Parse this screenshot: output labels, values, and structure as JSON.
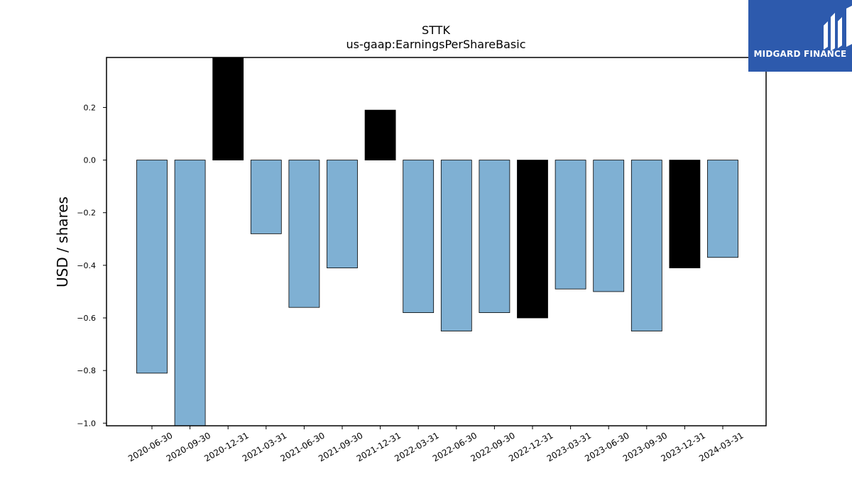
{
  "chart_data": {
    "type": "bar",
    "title": "STTK",
    "subtitle": "us-gaap:EarningsPerShareBasic",
    "ylabel": "USD / shares",
    "xlabel": "",
    "ylim": [
      -1.01,
      0.39
    ],
    "yticks": [
      0.2,
      0.0,
      -0.2,
      -0.4,
      -0.6,
      -0.8,
      -1.0
    ],
    "ytick_labels": [
      "0.2",
      "0.0",
      "−0.2",
      "−0.4",
      "−0.6",
      "−0.8",
      "−1.0"
    ],
    "categories": [
      "2020-06-30",
      "2020-09-30",
      "2020-12-31",
      "2021-03-31",
      "2021-06-30",
      "2021-09-30",
      "2021-12-31",
      "2022-03-31",
      "2022-06-30",
      "2022-09-30",
      "2022-12-31",
      "2023-03-31",
      "2023-06-30",
      "2023-09-30",
      "2023-12-31",
      "2024-03-31"
    ],
    "values": [
      -0.81,
      -1.01,
      0.39,
      -0.28,
      -0.56,
      -0.41,
      0.19,
      -0.58,
      -0.65,
      -0.58,
      -0.6,
      -0.49,
      -0.5,
      -0.65,
      -0.41,
      -0.37
    ],
    "colors": [
      "#7fb0d3",
      "#7fb0d3",
      "#000000",
      "#7fb0d3",
      "#7fb0d3",
      "#7fb0d3",
      "#000000",
      "#7fb0d3",
      "#7fb0d3",
      "#7fb0d3",
      "#000000",
      "#7fb0d3",
      "#7fb0d3",
      "#7fb0d3",
      "#000000",
      "#7fb0d3"
    ],
    "grid": false,
    "legend": "none"
  },
  "logo": {
    "text": "MIDGARD FINANCE",
    "background": "#2d5aad",
    "icon": "midgard-logo-icon"
  }
}
